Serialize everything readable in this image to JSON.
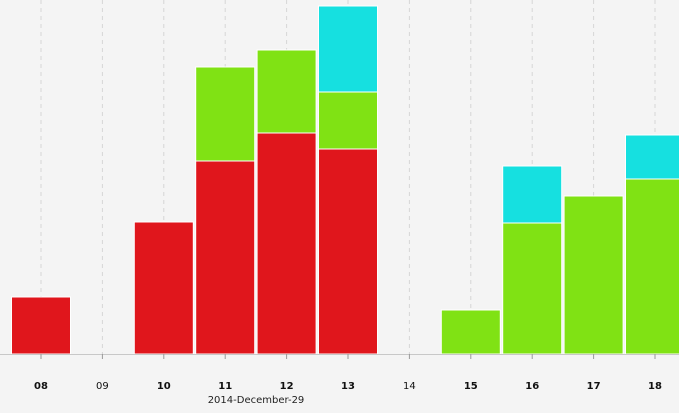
{
  "chart_data": {
    "type": "bar",
    "stacked": true,
    "date_label": "2014-December-29",
    "categories": [
      "08",
      "09",
      "10",
      "11",
      "12",
      "13",
      "14",
      "15",
      "16",
      "17",
      "18"
    ],
    "bold_categories": [
      "08",
      "10",
      "11",
      "12",
      "13",
      "15",
      "16",
      "17",
      "18"
    ],
    "series": [
      {
        "color": "#e0161c",
        "values": [
          57,
          0,
          132,
          193,
          221,
          205,
          0,
          0,
          0,
          0,
          0
        ]
      },
      {
        "color": "#80e214",
        "values": [
          0,
          0,
          0,
          94,
          83,
          57,
          0,
          44,
          131,
          158,
          175
        ]
      },
      {
        "color": "#16e0e0",
        "values": [
          0,
          0,
          0,
          0,
          0,
          86,
          0,
          0,
          57,
          0,
          44
        ]
      }
    ],
    "ylim": [
      0,
      350
    ],
    "grid": true
  }
}
